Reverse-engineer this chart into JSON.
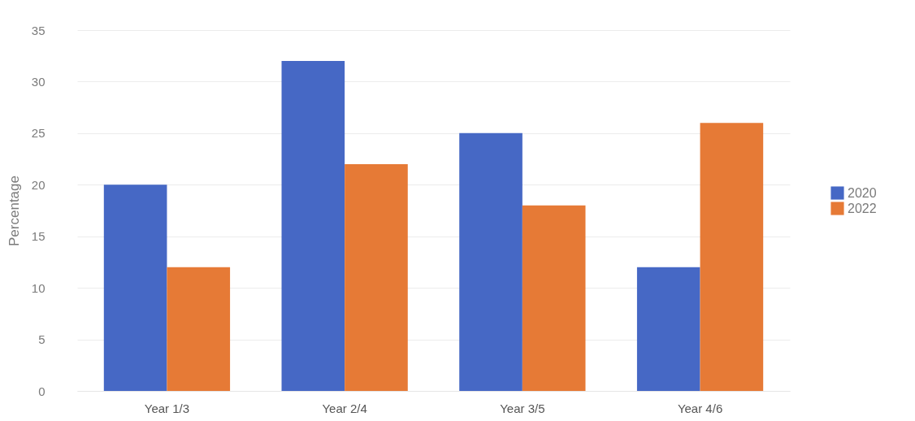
{
  "chart_data": {
    "type": "bar",
    "ylabel": "Percentage",
    "categories": [
      "Year 1/3",
      "Year 2/4",
      "Year 3/5",
      "Year 4/6"
    ],
    "series": [
      {
        "name": "2020",
        "color": "#4668c5",
        "values": [
          20,
          32,
          25,
          12
        ]
      },
      {
        "name": "2022",
        "color": "#e67a36",
        "values": [
          12,
          22,
          18,
          26
        ]
      }
    ],
    "ylim": [
      0,
      35
    ],
    "yticks": [
      0,
      5,
      10,
      15,
      20,
      25,
      30,
      35
    ],
    "grid": "y",
    "legend": "right"
  }
}
